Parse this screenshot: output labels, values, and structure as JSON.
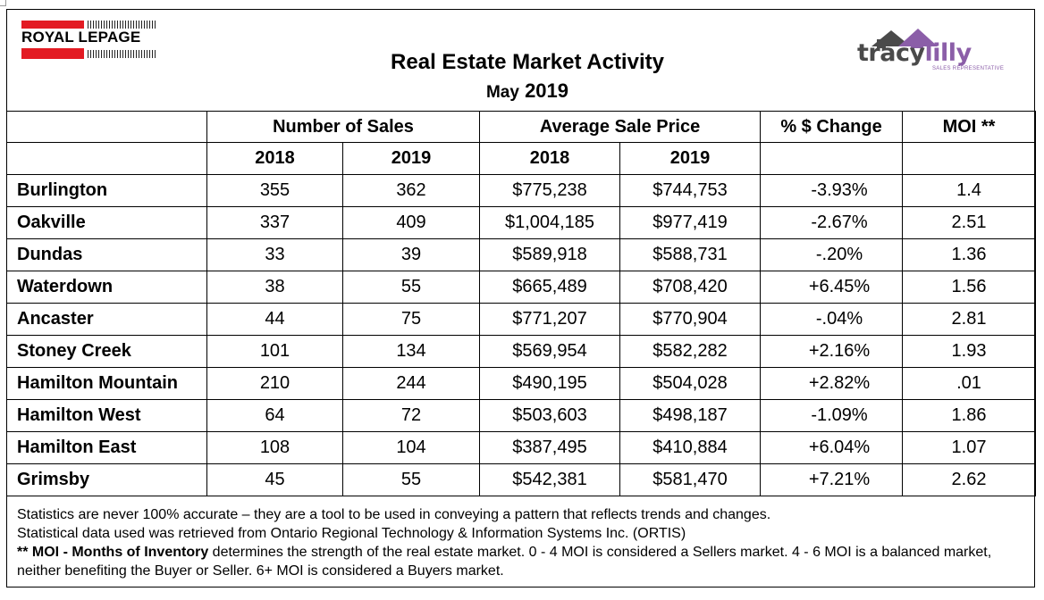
{
  "header": {
    "brand_left": "ROYAL LEPAGE",
    "title": "Real Estate Market Activity",
    "subtitle_month": "May",
    "subtitle_year": "2019",
    "brand_right_part1": "tracy",
    "brand_right_part2": "lilly",
    "brand_right_sub": "SALES REPRESENTATIVE"
  },
  "colors": {
    "rlp_red": "#e31b23",
    "tl_purple": "#8b5ea8",
    "tl_grey": "#4a4a4a"
  },
  "table": {
    "group_headers": [
      "Number of Sales",
      "Average Sale Price",
      "% $ Change",
      "MOI **"
    ],
    "year_headers": [
      "2018",
      "2019",
      "2018",
      "2019"
    ],
    "rows": [
      {
        "city": "Burlington",
        "sales_2018": "355",
        "sales_2019": "362",
        "price_2018": "$775,238",
        "price_2019": "$744,753",
        "change": "-3.93%",
        "moi": "1.4"
      },
      {
        "city": "Oakville",
        "sales_2018": "337",
        "sales_2019": "409",
        "price_2018": "$1,004,185",
        "price_2019": "$977,419",
        "change": "-2.67%",
        "moi": "2.51"
      },
      {
        "city": "Dundas",
        "sales_2018": "33",
        "sales_2019": "39",
        "price_2018": "$589,918",
        "price_2019": "$588,731",
        "change": "-.20%",
        "moi": "1.36"
      },
      {
        "city": "Waterdown",
        "sales_2018": "38",
        "sales_2019": "55",
        "price_2018": "$665,489",
        "price_2019": "$708,420",
        "change": "+6.45%",
        "moi": "1.56"
      },
      {
        "city": "Ancaster",
        "sales_2018": "44",
        "sales_2019": "75",
        "price_2018": "$771,207",
        "price_2019": "$770,904",
        "change": "-.04%",
        "moi": "2.81"
      },
      {
        "city": "Stoney Creek",
        "sales_2018": "101",
        "sales_2019": "134",
        "price_2018": "$569,954",
        "price_2019": "$582,282",
        "change": "+2.16%",
        "moi": "1.93"
      },
      {
        "city": "Hamilton Mountain",
        "sales_2018": "210",
        "sales_2019": "244",
        "price_2018": "$490,195",
        "price_2019": "$504,028",
        "change": "+2.82%",
        "moi": ".01"
      },
      {
        "city": "Hamilton West",
        "sales_2018": "64",
        "sales_2019": "72",
        "price_2018": "$503,603",
        "price_2019": "$498,187",
        "change": "-1.09%",
        "moi": "1.86"
      },
      {
        "city": "Hamilton East",
        "sales_2018": "108",
        "sales_2019": "104",
        "price_2018": "$387,495",
        "price_2019": "$410,884",
        "change": "+6.04%",
        "moi": "1.07"
      },
      {
        "city": "Grimsby",
        "sales_2018": "45",
        "sales_2019": "55",
        "price_2018": "$542,381",
        "price_2019": "$581,470",
        "change": "+7.21%",
        "moi": "2.62"
      }
    ]
  },
  "footnotes": {
    "line1": "Statistics are never 100% accurate – they are a tool to be used in conveying a pattern that reflects trends and changes.",
    "line2": "Statistical data used was retrieved from Ontario Regional Technology & Information Systems Inc. (ORTIS)",
    "line3_bold": "** MOI - Months of Inventory",
    "line3_rest": " determines the strength of the real estate market. 0 - 4 MOI is considered a Sellers market. 4 - 6 MOI is a balanced market, neither benefiting the Buyer or Seller. 6+ MOI is considered a Buyers market."
  }
}
